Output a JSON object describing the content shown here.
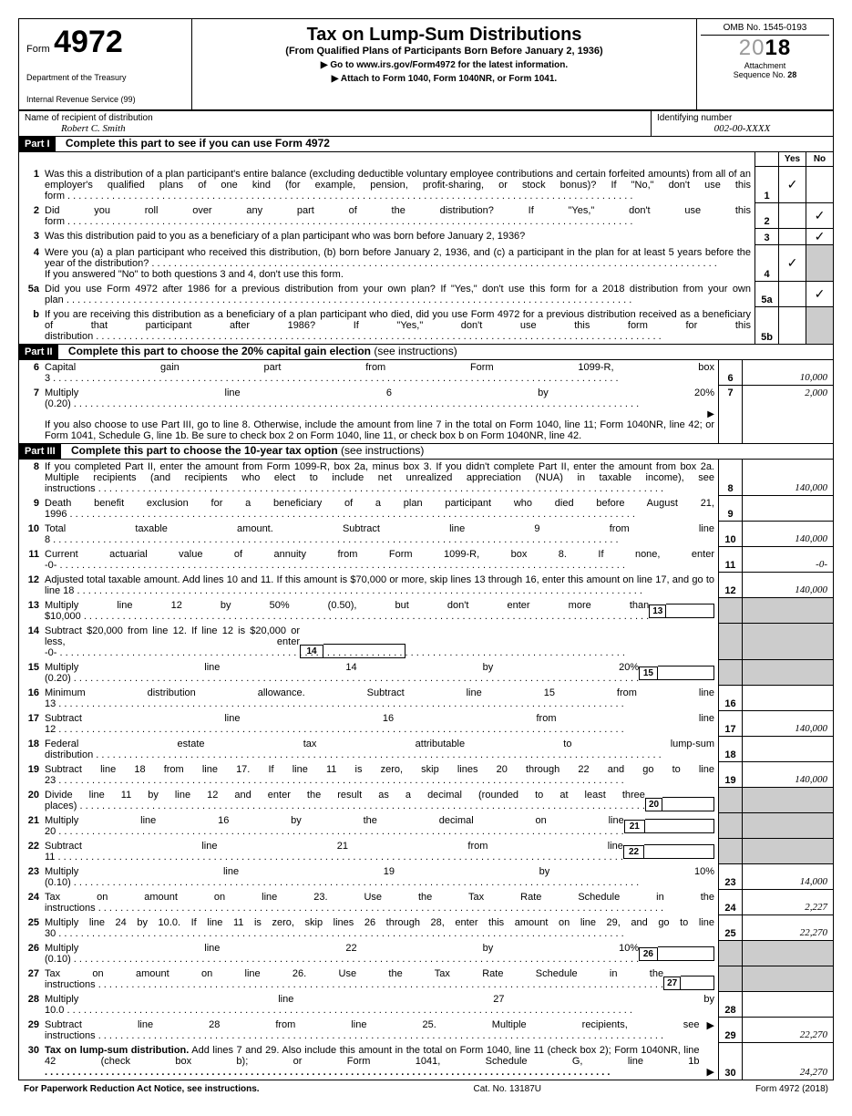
{
  "header": {
    "form_word": "Form",
    "form_no": "4972",
    "dept1": "Department of the Treasury",
    "dept2": "Internal Revenue Service (99)",
    "title": "Tax on Lump-Sum Distributions",
    "subtitle": "(From Qualified Plans of Participants Born Before January 2, 1936)",
    "go1": "Go to www.irs.gov/Form4972 for the latest information.",
    "go2": "Attach to Form 1040, Form 1040NR, or Form 1041.",
    "omb": "OMB No. 1545-0193",
    "year_outline": "20",
    "year_bold": "18",
    "attach": "Attachment",
    "seq": "Sequence No.",
    "seqno": "28"
  },
  "name": {
    "label": "Name of recipient of distribution",
    "value": "Robert C. Smith",
    "id_label": "Identifying number",
    "id_value": "002-00-XXXX"
  },
  "p1": {
    "label": "Part I",
    "title": "Complete this part to see if you can use Form 4972",
    "yes": "Yes",
    "no": "No",
    "q1": {
      "n": "1",
      "t": "Was this a distribution of a plan participant's entire balance (excluding deductible voluntary employee contributions and certain forfeited amounts) from all of an employer's qualified plans of one kind (for example, pension, profit-sharing, or stock bonus)? If \"No,\" don't use this form",
      "yes": "✓",
      "no": ""
    },
    "q2": {
      "n": "2",
      "t": "Did you roll over any part of the distribution? If \"Yes,\" don't use this form",
      "yes": "",
      "no": "✓"
    },
    "q3": {
      "n": "3",
      "t": "Was this distribution paid to you as a beneficiary of a plan participant who was born before January 2, 1936?",
      "yes": "",
      "no": "✓"
    },
    "q4": {
      "n": "4",
      "t": "Were you (a) a plan participant who received this distribution, (b) born before January 2, 1936, and (c) a participant in the plan for at least 5 years before the year of the distribution?",
      "t2": "If you answered \"No\" to both questions 3 and 4, don't use this form.",
      "yes": "✓",
      "no": ""
    },
    "q5a": {
      "n": "5a",
      "t": "Did you use Form 4972 after 1986 for a previous distribution from your own plan? If \"Yes,\" don't use this form for a 2018 distribution from your own plan",
      "yes": "",
      "no": "✓"
    },
    "q5b": {
      "n": "b",
      "t": "If you are receiving this distribution as a beneficiary of a plan participant who died, did you use Form 4972 for a previous distribution received as a beneficiary of that participant after 1986? If \"Yes,\" don't use this form for this distribution",
      "yes": "",
      "no": ""
    }
  },
  "p2": {
    "label": "Part II",
    "title": "Complete this part to choose the 20% capital gain election",
    "see": "(see instructions)",
    "l6": {
      "n": "6",
      "t": "Capital gain part from Form 1099-R, box 3",
      "v": "10,000"
    },
    "l7": {
      "n": "7",
      "t": "Multiply line 6 by 20% (0.20)",
      "v": "2,000",
      "t2": "If you also choose to use Part III, go to line 8. Otherwise, include the amount from line 7 in the total on Form 1040, line 11; Form 1040NR, line 42; or Form 1041, Schedule G, line 1b. Be sure to check box 2 on Form 1040, line 11, or check box b on Form 1040NR, line 42."
    }
  },
  "p3": {
    "label": "Part III",
    "title": "Complete this part to choose the 10-year tax option",
    "see": "(see instructions)",
    "l8": {
      "n": "8",
      "t": "If you completed Part II, enter the amount from Form 1099-R, box 2a, minus box 3. If you didn't complete Part II, enter the amount from box 2a. Multiple recipients (and recipients who elect to include net unrealized appreciation (NUA) in taxable income), see instructions",
      "v": "140,000"
    },
    "l9": {
      "n": "9",
      "t": "Death benefit exclusion for a beneficiary of a plan participant who died before August 21, 1996",
      "v": ""
    },
    "l10": {
      "n": "10",
      "t": "Total taxable amount. Subtract line 9 from line 8",
      "v": "140,000"
    },
    "l11": {
      "n": "11",
      "t": "Current actuarial value of annuity from Form 1099-R, box 8. If none, enter -0-",
      "v": "-0-"
    },
    "l12": {
      "n": "12",
      "t": "Adjusted total taxable amount. Add lines 10 and 11. If this amount is $70,000 or more, skip lines 13 through 16, enter this amount on line 17, and go to line 18",
      "v": "140,000"
    },
    "l13": {
      "n": "13",
      "t": "Multiply line 12 by 50% (0.50), but don't enter more than $10,000"
    },
    "l14": {
      "n": "14",
      "t": "Subtract $20,000 from line 12. If line 12 is $20,000 or less, enter -0-"
    },
    "l15": {
      "n": "15",
      "t": "Multiply line 14 by 20% (0.20)"
    },
    "l16": {
      "n": "16",
      "t": "Minimum distribution allowance. Subtract line 15 from line 13",
      "v": ""
    },
    "l17": {
      "n": "17",
      "t": "Subtract line 16 from line 12",
      "v": "140,000"
    },
    "l18": {
      "n": "18",
      "t": "Federal estate tax attributable to lump-sum distribution",
      "v": ""
    },
    "l19": {
      "n": "19",
      "t": "Subtract line 18 from line 17. If line 11 is zero, skip lines 20 through 22 and go to line 23",
      "v": "140,000"
    },
    "l20": {
      "n": "20",
      "t": "Divide line 11 by line 12 and enter the result as a decimal (rounded to at least three places)"
    },
    "l21": {
      "n": "21",
      "t": "Multiply line 16 by the decimal on line 20"
    },
    "l22": {
      "n": "22",
      "t": "Subtract line 21 from line 11"
    },
    "l23": {
      "n": "23",
      "t": "Multiply line 19 by 10% (0.10)",
      "v": "14,000"
    },
    "l24": {
      "n": "24",
      "t": "Tax on amount on line 23. Use the Tax Rate Schedule in the instructions",
      "v": "2,227"
    },
    "l25": {
      "n": "25",
      "t": "Multiply line 24 by 10.0. If line 11 is zero, skip lines 26 through 28, enter this amount on line 29, and go to line 30",
      "v": "22,270"
    },
    "l26": {
      "n": "26",
      "t": "Multiply line 22 by 10% (0.10)"
    },
    "l27": {
      "n": "27",
      "t": "Tax on amount on line 26. Use the Tax Rate Schedule in the instructions"
    },
    "l28": {
      "n": "28",
      "t": "Multiply line 27 by 10.0",
      "v": ""
    },
    "l29": {
      "n": "29",
      "t": "Subtract line 28 from line 25. Multiple recipients, see instructions",
      "v": "22,270"
    },
    "l30": {
      "n": "30",
      "t": "Tax on lump-sum distribution. Add lines 7 and 29. Also include this amount in the total on Form 1040, line 11 (check box 2); Form 1040NR, line 42 (check box b); or Form 1041, Schedule G, line 1b",
      "v": "24,270"
    }
  },
  "footer": {
    "pra": "For Paperwork Reduction Act Notice, see instructions.",
    "cat": "Cat. No. 13187U",
    "form": "Form 4972 (2018)"
  }
}
